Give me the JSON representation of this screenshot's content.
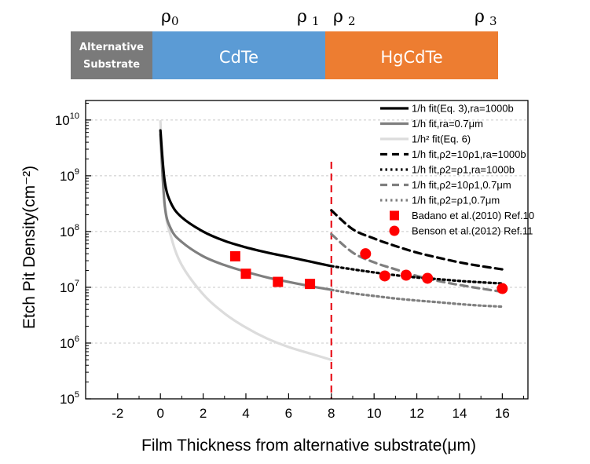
{
  "header": {
    "rho_markers": [
      {
        "base": "ρ",
        "sub": "0"
      },
      {
        "base": "ρ",
        "sub": "1"
      },
      {
        "base": "ρ",
        "sub": "2"
      },
      {
        "base": "ρ",
        "sub": "3"
      }
    ],
    "bands": [
      {
        "label_lines": [
          "Alternative",
          "Substrate"
        ],
        "color": "#7a7a7a"
      },
      {
        "label_lines": [
          "CdTe"
        ],
        "color": "#5b9bd5"
      },
      {
        "label_lines": [
          "HgCdTe"
        ],
        "color": "#ed7d31"
      }
    ]
  },
  "colors": {
    "fit_black": "#000000",
    "fit_mid_gray": "#7f7f7f",
    "fit_light_gray": "#dcdcdc",
    "markers_red": "#ff0000",
    "boundary_line": "#e8141c",
    "grid": "#c8c8c8"
  },
  "chart_data": {
    "type": "line",
    "title": "",
    "xlabel": "Film Thickness from alternative substrate(μm)",
    "ylabel": "Etch Pit Density(cm⁻²)",
    "xlim": [
      -3.5,
      17.2
    ],
    "ylim_log10": [
      5,
      10.35
    ],
    "y_scale": "log",
    "x_ticks": [
      -2,
      0,
      2,
      4,
      6,
      8,
      10,
      12,
      14,
      16
    ],
    "y_ticks": [
      {
        "value": 100000,
        "label": "10",
        "exp": "5"
      },
      {
        "value": 1000000,
        "label": "10",
        "exp": "6"
      },
      {
        "value": 10000000,
        "label": "10",
        "exp": "7"
      },
      {
        "value": 100000000,
        "label": "10",
        "exp": "8"
      },
      {
        "value": 1000000000,
        "label": "10",
        "exp": "9"
      },
      {
        "value": 10000000000,
        "label": "10",
        "exp": "10"
      }
    ],
    "grid": "horizontal dashed at decades",
    "legend_position": "top-right",
    "vertical_marker_x": 8,
    "series": [
      {
        "name": "1/h fit(Eq. 3),ra=1000b",
        "color": "#000000",
        "dash": "solid",
        "width": 3.2,
        "x": [
          0,
          0.2,
          0.5,
          1,
          2,
          3,
          4,
          5,
          6,
          7,
          8
        ],
        "y": [
          6500000000,
          800000000,
          320000000,
          180000000,
          100000000,
          68000000,
          52000000,
          42000000,
          35000000,
          29000000,
          24000000
        ]
      },
      {
        "name": "1/h fit,ra=0.7μm",
        "color": "#7f7f7f",
        "dash": "solid",
        "width": 3.2,
        "x": [
          0,
          0.2,
          0.5,
          1,
          2,
          3,
          4,
          5,
          6,
          7,
          8
        ],
        "y": [
          5500000000,
          300000000,
          110000000,
          65000000,
          36000000,
          25000000,
          19000000,
          15000000,
          12500000,
          10500000,
          9000000
        ]
      },
      {
        "name": "1/h² fit(Eq. 6)",
        "color": "#dcdcdc",
        "dash": "solid",
        "width": 3.2,
        "x": [
          0,
          0.2,
          0.5,
          1,
          2,
          3,
          4,
          5,
          6,
          7,
          8
        ],
        "y": [
          9500000000,
          300000000,
          80000000,
          25000000,
          7500000,
          3400000,
          1900000,
          1200000,
          850000,
          650000,
          500000
        ]
      },
      {
        "name": "1/h fit,ρ2=10ρ1,ra=1000b",
        "color": "#000000",
        "dash": "9,6",
        "width": 3.2,
        "x": [
          8,
          9,
          10,
          11,
          12,
          13,
          14,
          15,
          16
        ],
        "y": [
          240000000,
          110000000,
          75000000,
          55000000,
          42000000,
          34000000,
          28000000,
          24000000,
          21000000
        ]
      },
      {
        "name": "1/h fit,ρ2=ρ1,ra=1000b",
        "color": "#000000",
        "dash": "2.5,4",
        "width": 3.2,
        "x": [
          8,
          9,
          10,
          11,
          12,
          13,
          14,
          15,
          16
        ],
        "y": [
          24000000,
          21000000,
          18500000,
          16500000,
          15000000,
          14000000,
          13000000,
          12300000,
          11700000
        ]
      },
      {
        "name": "1/h fit,ρ2=10ρ1,0.7μm",
        "color": "#7f7f7f",
        "dash": "9,6",
        "width": 3.2,
        "x": [
          8,
          9,
          10,
          11,
          12,
          13,
          14,
          15,
          16
        ],
        "y": [
          90000000,
          42000000,
          28000000,
          21000000,
          16000000,
          13000000,
          11000000,
          9500000,
          8300000
        ]
      },
      {
        "name": "1/h fit,ρ2=ρ1,0.7μm",
        "color": "#7f7f7f",
        "dash": "2.5,4",
        "width": 3.2,
        "x": [
          8,
          9,
          10,
          11,
          12,
          13,
          14,
          15,
          16
        ],
        "y": [
          9000000,
          7800000,
          7000000,
          6300000,
          5800000,
          5400000,
          5000000,
          4700000,
          4500000
        ]
      }
    ],
    "scatter": [
      {
        "name": "Badano et al.(2010) Ref.10",
        "marker": "square",
        "color": "#ff0000",
        "x": [
          3.5,
          4,
          5.5,
          7
        ],
        "y": [
          36000000,
          17500000,
          12500000,
          11500000
        ]
      },
      {
        "name": "Benson et al.(2012) Ref.11",
        "marker": "circle",
        "color": "#ff0000",
        "x": [
          9.6,
          10.5,
          11.5,
          12.5,
          16
        ],
        "y": [
          40000000,
          16000000,
          16500000,
          14500000,
          9500000
        ]
      }
    ]
  }
}
